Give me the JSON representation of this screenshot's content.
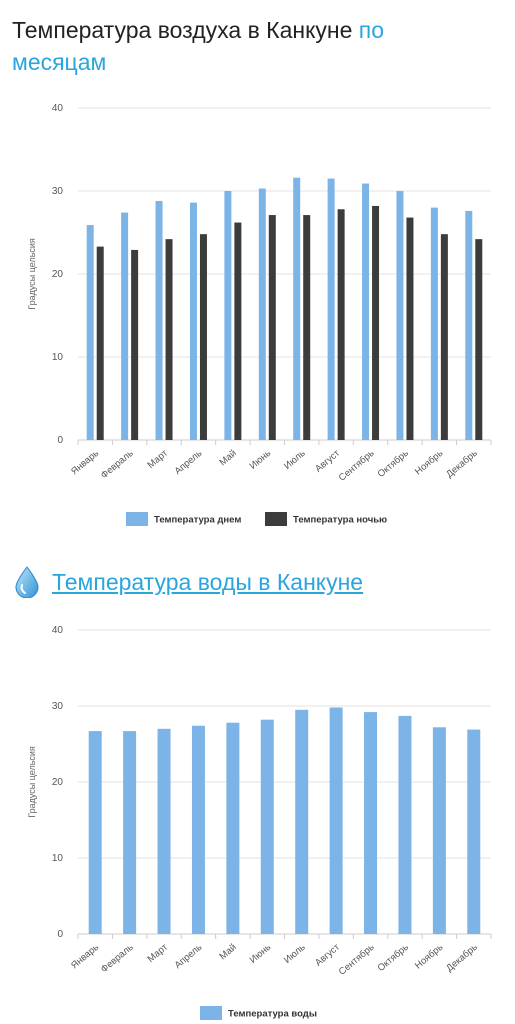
{
  "header": {
    "title_main": "Температура воздуха в Канкуне ",
    "title_accent_1": "по",
    "title_accent_2": "месяцам"
  },
  "section2": {
    "icon": "water-drop-icon",
    "title": "Температура воды в Канкуне"
  },
  "colors": {
    "day": "#7cb4e8",
    "night": "#3c3c3c",
    "water": "#7cb4e8",
    "accent": "#2aa6dc"
  },
  "chart_data": [
    {
      "type": "bar",
      "title": "",
      "ylabel": "Градусы цельсия",
      "xlabel": "",
      "ylim": [
        0,
        40
      ],
      "yticks": [
        0,
        10,
        20,
        30,
        40
      ],
      "categories": [
        "Январь",
        "Февраль",
        "Март",
        "Апрель",
        "Май",
        "Июнь",
        "Июль",
        "Август",
        "Сентябрь",
        "Октябрь",
        "Ноябрь",
        "Декабрь"
      ],
      "series": [
        {
          "name": "Температура днем",
          "values": [
            25.9,
            27.4,
            28.8,
            28.6,
            30.0,
            30.3,
            31.6,
            31.5,
            30.9,
            30.0,
            28.0,
            27.6
          ]
        },
        {
          "name": "Температура ночью",
          "values": [
            23.3,
            22.9,
            24.2,
            24.8,
            26.2,
            27.1,
            27.1,
            27.8,
            28.2,
            26.8,
            24.8,
            24.2
          ]
        }
      ],
      "legend": "bottom"
    },
    {
      "type": "bar",
      "title": "",
      "ylabel": "Градусы цельсия",
      "xlabel": "",
      "ylim": [
        0,
        40
      ],
      "yticks": [
        0,
        10,
        20,
        30,
        40
      ],
      "categories": [
        "Январь",
        "Февраль",
        "Март",
        "Апрель",
        "Май",
        "Июнь",
        "Июль",
        "Август",
        "Сентябрь",
        "Октябрь",
        "Ноябрь",
        "Декабрь"
      ],
      "series": [
        {
          "name": "Температура воды",
          "values": [
            26.7,
            26.7,
            27.0,
            27.4,
            27.8,
            28.2,
            29.5,
            29.8,
            29.2,
            28.7,
            27.2,
            26.9
          ]
        }
      ],
      "legend": "bottom"
    }
  ]
}
